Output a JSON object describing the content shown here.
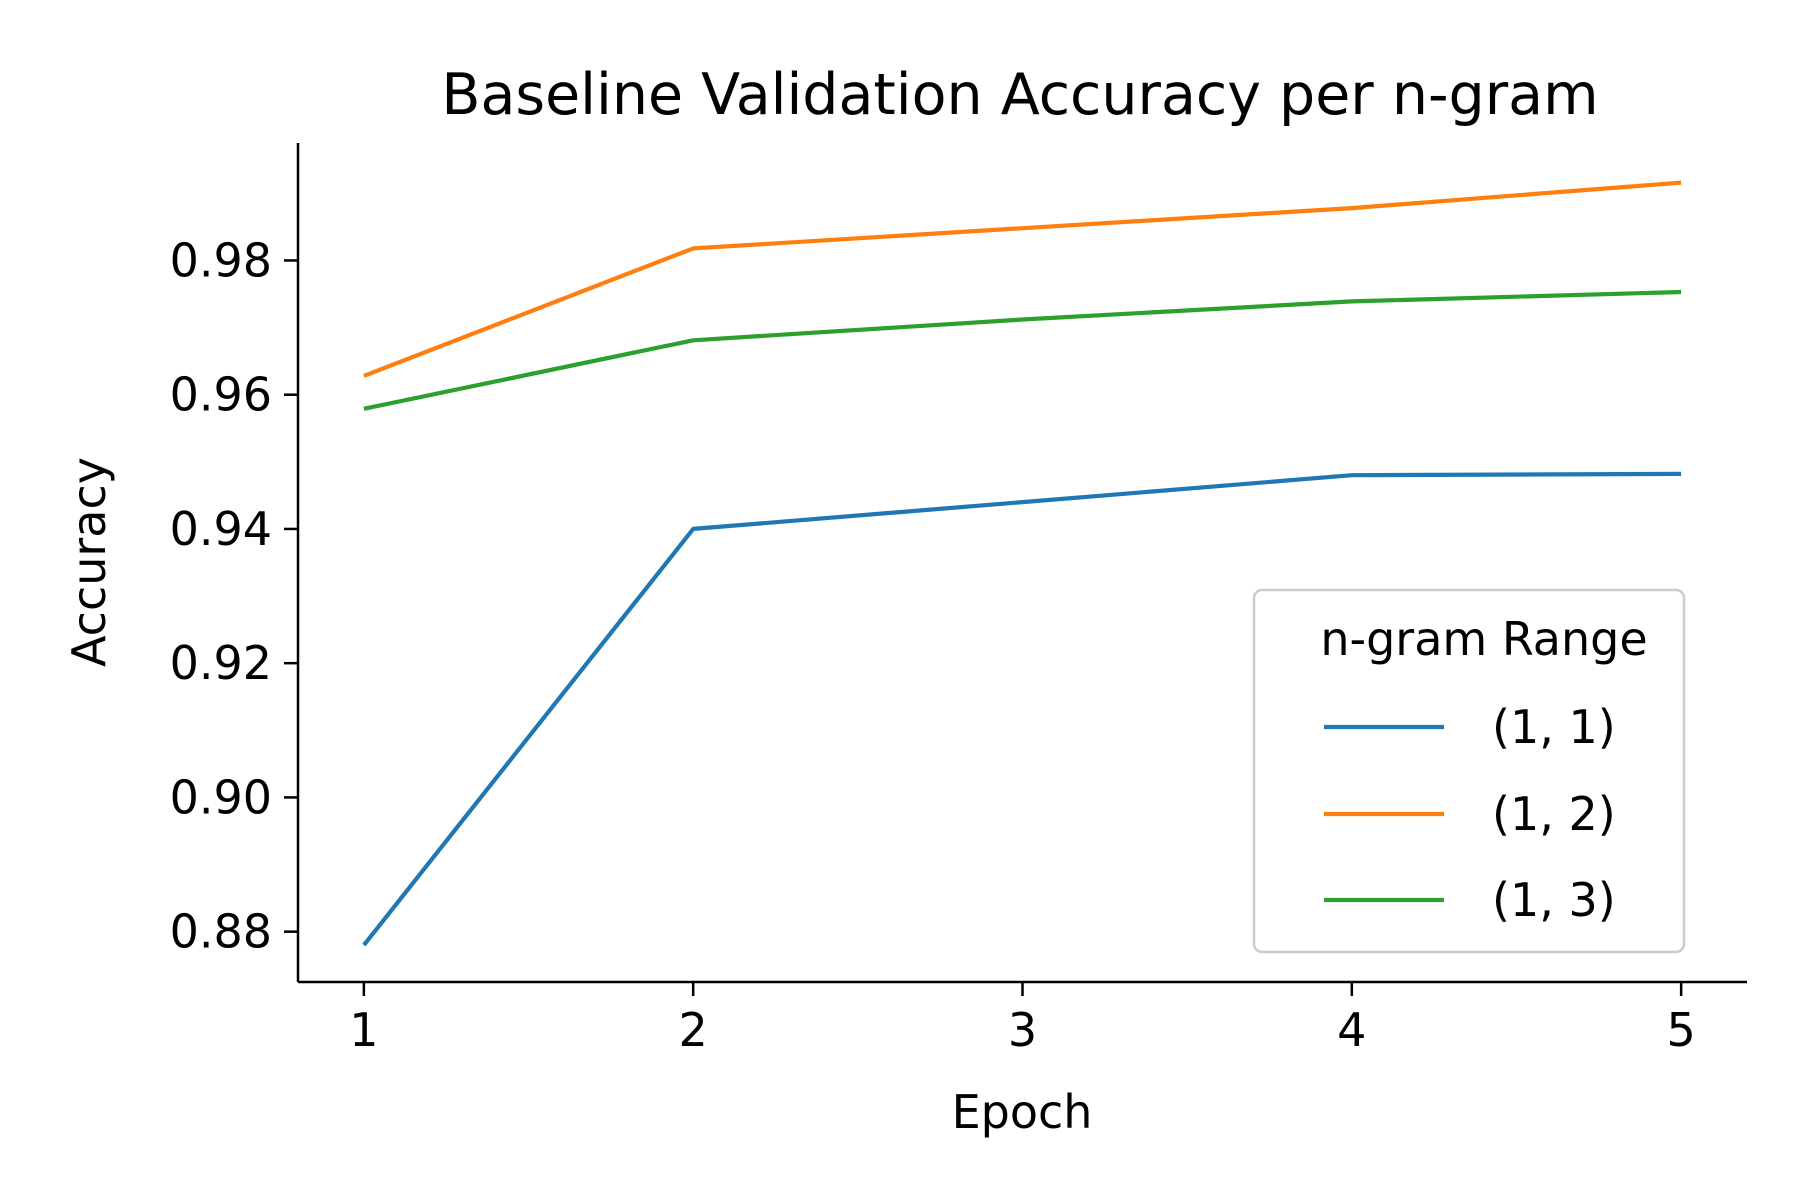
{
  "chart_data": {
    "type": "line",
    "title": "Baseline Validation Accuracy per n-gram",
    "xlabel": "Epoch",
    "ylabel": "Accuracy",
    "x": [
      1,
      2,
      3,
      4,
      5
    ],
    "xticks": [
      "1",
      "2",
      "3",
      "4",
      "5"
    ],
    "yticks": [
      "0.88",
      "0.90",
      "0.92",
      "0.94",
      "0.96",
      "0.98"
    ],
    "ytick_values": [
      0.88,
      0.9,
      0.92,
      0.94,
      0.96,
      0.98
    ],
    "xlim": [
      0.8,
      5.2
    ],
    "ylim": [
      0.8725,
      0.9975
    ],
    "grid": false,
    "legend_title": "n-gram Range",
    "legend_position": "lower right",
    "series": [
      {
        "name": "(1, 1)",
        "color": "#1f77b4",
        "values": [
          0.878,
          0.94,
          0.944,
          0.948,
          0.9482
        ]
      },
      {
        "name": "(1, 2)",
        "color": "#ff7f0e",
        "values": [
          0.9628,
          0.9818,
          0.9848,
          0.9878,
          0.9916
        ]
      },
      {
        "name": "(1, 3)",
        "color": "#2ca02c",
        "values": [
          0.9579,
          0.9681,
          0.9712,
          0.9739,
          0.9753
        ]
      }
    ]
  }
}
